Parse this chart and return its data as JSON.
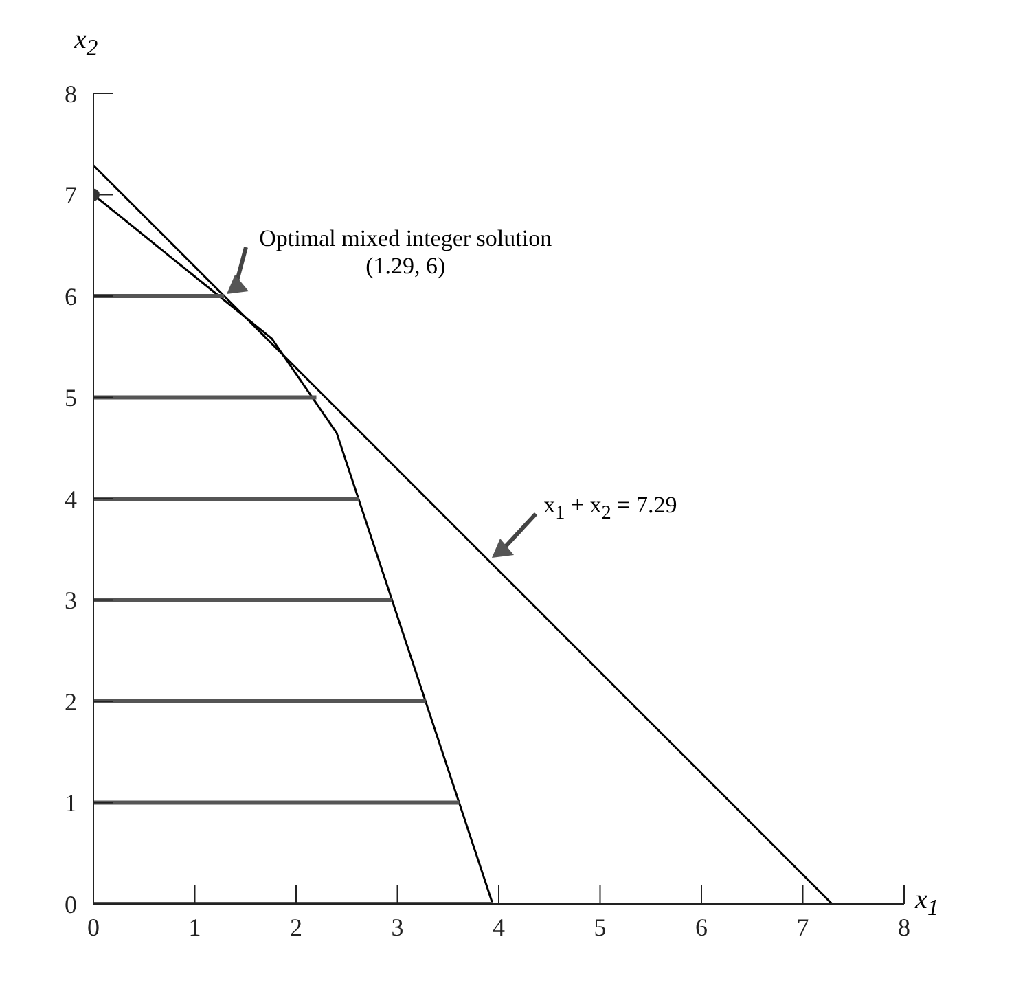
{
  "chart_data": {
    "type": "line",
    "xlabel": "x$_{1}$",
    "ylabel": "x$_{2}$",
    "xlim": [
      0,
      8
    ],
    "ylim": [
      0,
      8
    ],
    "xticks": [
      0,
      1,
      2,
      3,
      4,
      5,
      6,
      7,
      8
    ],
    "yticks": [
      0,
      1,
      2,
      3,
      4,
      5,
      6,
      7,
      8
    ],
    "marker": "none",
    "annotations": [
      {
        "text": "Optimal mixed integer solution (1.29, 6)",
        "x": 1.29,
        "y": 6
      },
      {
        "text": "x$_{1}$ + x$_{2}$ = 7.29",
        "x": 3.9,
        "y": 3.39
      }
    ],
    "series": [
      {
        "color": "#000000",
        "x": [
          0,
          7.29
        ],
        "values": [
          7.29,
          0
        ]
      },
      {
        "color": "#000000",
        "x": [
          0,
          1.76,
          2.4,
          3.94
        ],
        "values": [
          7,
          5.58,
          4.65,
          0
        ]
      },
      {
        "color": "#555555",
        "x": [
          0,
          3.94
        ],
        "values": [
          0,
          0
        ]
      },
      {
        "color": "#555555",
        "x": [
          0,
          3.61
        ],
        "values": [
          1,
          1
        ]
      },
      {
        "color": "#555555",
        "x": [
          0,
          3.28
        ],
        "values": [
          2,
          2
        ]
      },
      {
        "color": "#555555",
        "x": [
          0,
          2.95
        ],
        "values": [
          3,
          3
        ]
      },
      {
        "color": "#555555",
        "x": [
          0,
          2.62
        ],
        "values": [
          4,
          4
        ]
      },
      {
        "color": "#555555",
        "x": [
          0,
          2.2
        ],
        "values": [
          5,
          5
        ]
      },
      {
        "color": "#555555",
        "x": [
          0,
          1.29
        ],
        "values": [
          6,
          6
        ]
      },
      {
        "type": "scatter",
        "marker": "circle",
        "color": "#333333",
        "x": [
          0
        ],
        "values": [
          7
        ]
      }
    ]
  }
}
